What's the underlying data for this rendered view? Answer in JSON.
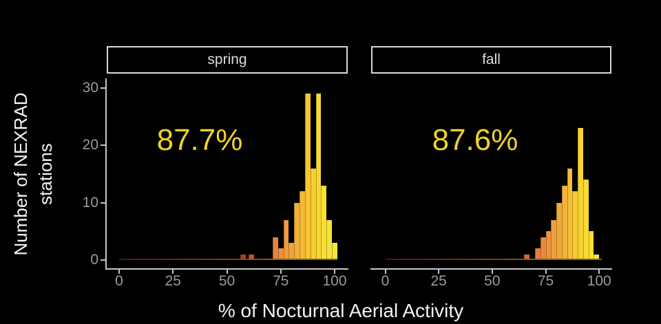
{
  "figure": {
    "background": "#000000",
    "y_axis_title_line1": "Number of NEXRAD",
    "y_axis_title_line2": "stations",
    "x_axis_title": "% of Nocturnal Aerial Activity"
  },
  "chart_data": {
    "type": "bar",
    "subtype": "faceted-histogram",
    "title": "",
    "xlabel": "% of Nocturnal Aerial Activity",
    "ylabel": "Number of NEXRAD stations",
    "x_ticks": [
      0,
      25,
      50,
      75,
      100
    ],
    "y_ticks": [
      0,
      10,
      20,
      30
    ],
    "xlim": [
      -5,
      105
    ],
    "ylim": [
      0,
      30
    ],
    "binwidth": 2.5,
    "grid": false,
    "legend": "none",
    "fill_mapping": "bar fill encodes x value: dark red (low %) through orange to bright yellow (high %)",
    "color_stops": [
      [
        55,
        "#93322a"
      ],
      [
        62,
        "#c4572f"
      ],
      [
        70,
        "#e07a3d"
      ],
      [
        76,
        "#ec943e"
      ],
      [
        82,
        "#f2ac3b"
      ],
      [
        86,
        "#f5bd36"
      ],
      [
        90,
        "#f7cf30"
      ],
      [
        94,
        "#f8dc35"
      ],
      [
        98,
        "#f7e43a"
      ],
      [
        102,
        "#f2ea41"
      ]
    ],
    "facets": [
      {
        "label": "spring",
        "mean_label": "87.7%",
        "bins": [
          {
            "x": 57.5,
            "count": 1
          },
          {
            "x": 61.25,
            "count": 1
          },
          {
            "x": 72.5,
            "count": 4
          },
          {
            "x": 75,
            "count": 2
          },
          {
            "x": 77.5,
            "count": 7
          },
          {
            "x": 80,
            "count": 3
          },
          {
            "x": 82.5,
            "count": 10
          },
          {
            "x": 85,
            "count": 12
          },
          {
            "x": 87.5,
            "count": 29
          },
          {
            "x": 90,
            "count": 16
          },
          {
            "x": 92.5,
            "count": 29
          },
          {
            "x": 95,
            "count": 13
          },
          {
            "x": 97.5,
            "count": 7
          },
          {
            "x": 100,
            "count": 3
          }
        ]
      },
      {
        "label": "fall",
        "mean_label": "87.6%",
        "bins": [
          {
            "x": 66.25,
            "count": 1
          },
          {
            "x": 71.25,
            "count": 2
          },
          {
            "x": 73.75,
            "count": 4
          },
          {
            "x": 76.25,
            "count": 5
          },
          {
            "x": 78.75,
            "count": 7
          },
          {
            "x": 81.25,
            "count": 10
          },
          {
            "x": 83.75,
            "count": 13
          },
          {
            "x": 86.25,
            "count": 16
          },
          {
            "x": 88.75,
            "count": 12
          },
          {
            "x": 91.25,
            "count": 23
          },
          {
            "x": 93.75,
            "count": 14
          },
          {
            "x": 96.25,
            "count": 5
          },
          {
            "x": 98.75,
            "count": 1
          }
        ]
      }
    ],
    "colors": {
      "annotation_text": "#f0d12b",
      "axis_text": "#9b9b9b",
      "axis_line": "#c6c6c6",
      "strip_border": "#d9d9d9",
      "strip_text": "#dcdcdc",
      "title_text": "#f3f3f3",
      "background": "#000000"
    }
  }
}
